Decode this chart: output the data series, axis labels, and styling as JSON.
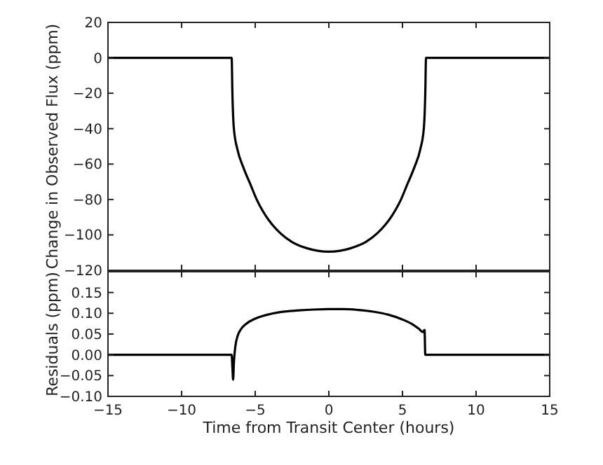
{
  "chart_data": [
    {
      "type": "line",
      "ylabel": "Change in Observed Flux (ppm)",
      "xlim": [
        -15,
        15
      ],
      "xticks": [
        -15,
        -10,
        -5,
        0,
        5,
        10,
        15
      ],
      "ylim": [
        -120,
        20
      ],
      "yticks": [
        20,
        0,
        -20,
        -40,
        -60,
        -80,
        -100,
        -120
      ],
      "tick_labels": "y",
      "marker": "none",
      "line_style": "solid",
      "grid": false,
      "series": [
        {
          "color": "#000000",
          "x": [
            -15,
            -6.6,
            -6.55,
            -6.45,
            -6.2,
            -5.8,
            -5.3,
            -4.9,
            -4.3,
            -3.3,
            -2.5,
            -1.5,
            0,
            1.5,
            2.5,
            3.3,
            4.3,
            4.9,
            5.3,
            5.8,
            6.2,
            6.45,
            6.55,
            6.6,
            15
          ],
          "values": [
            0,
            0,
            -20,
            -40,
            -52,
            -62,
            -72,
            -80,
            -89,
            -99,
            -104,
            -107.5,
            -109.5,
            -107.5,
            -104,
            -99,
            -89,
            -80,
            -72,
            -62,
            -52,
            -40,
            -20,
            0,
            0
          ]
        }
      ]
    },
    {
      "type": "line",
      "xlabel": "Time from Transit Center (hours)",
      "ylabel": "Residuals (ppm)",
      "xlim": [
        -15,
        15
      ],
      "xticks": [
        -15,
        -10,
        -5,
        0,
        5,
        10,
        15
      ],
      "ylim": [
        -0.1,
        0.2
      ],
      "yticks": [
        {
          "value": -0.1,
          "label": "−0.10"
        },
        {
          "value": -0.05,
          "label": "−0.05"
        },
        {
          "value": 0,
          "label": "0.00"
        },
        {
          "value": 0.05,
          "label": "0.05"
        },
        {
          "value": 0.1,
          "label": "0.10"
        },
        {
          "value": 0.15,
          "label": "0.15"
        }
      ],
      "marker": "none",
      "line_style": "solid",
      "grid": false,
      "series": [
        {
          "color": "#000000",
          "x": [
            -15,
            -6.6,
            -6.55,
            -6.5,
            -6.45,
            -6.35,
            -6.2,
            -6,
            -5.6,
            -5,
            -4,
            -3,
            -2,
            -1,
            0,
            1,
            2,
            3,
            4,
            5,
            5.6,
            6.1,
            6.4,
            6.5,
            6.55,
            15
          ],
          "values": [
            0,
            0,
            -0.03,
            -0.06,
            -0.02,
            0.02,
            0.045,
            0.06,
            0.075,
            0.087,
            0.098,
            0.104,
            0.107,
            0.109,
            0.11,
            0.11,
            0.108,
            0.104,
            0.097,
            0.085,
            0.075,
            0.063,
            0.055,
            0.06,
            0,
            0
          ]
        }
      ]
    }
  ]
}
